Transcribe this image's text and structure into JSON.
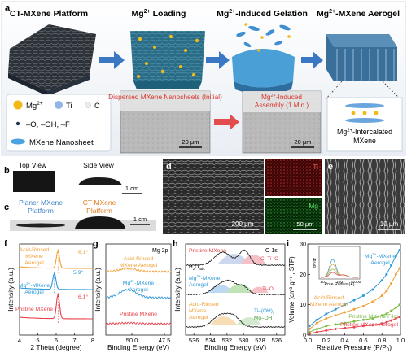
{
  "panel_letters": {
    "a": "a",
    "b": "b",
    "c": "c",
    "d": "d",
    "e": "e",
    "f": "f",
    "g": "g",
    "h": "h",
    "i": "i"
  },
  "panel_a": {
    "stage_titles": {
      "s1": "CT-MXene Platform",
      "s2_base": "Mg",
      "s2_sup": "2+",
      "s2_rest": " Loading",
      "s3_base": "Mg",
      "s3_sup": "2+",
      "s3_rest": "-Induced Gelation",
      "s4_base": "Mg",
      "s4_sup": "2+",
      "s4_rest": "-MXene Aerogel"
    },
    "legend": {
      "mg_base": "Mg",
      "mg_sup": "2+",
      "ti": "Ti",
      "c": "C",
      "groups": "–O, –OH, –F",
      "nanosheet": "MXene Nanosheet"
    },
    "micro1_title": "Dispersed MXene Nanosheets (Initial)",
    "micro2_title_a_base": "Mg",
    "micro2_title_a_sup": "2+",
    "micro2_title_a_rest": "-Induced",
    "micro2_title_b": "Assembly (1 Min.)",
    "scale_20um": "20 μm",
    "intercalated_a_base": "Mg",
    "intercalated_a_sup": "2+",
    "intercalated_a_rest": "-Intercalated",
    "intercalated_b": "MXene"
  },
  "panel_b": {
    "top": "Top View",
    "side": "Side View",
    "scale": "1 cm"
  },
  "panel_c": {
    "planer_a": "Planer MXene",
    "planer_b": "Platform",
    "ct_a": "CT-MXene",
    "ct_b": "Platform",
    "scale": "1 cm"
  },
  "panel_d": {
    "scale_main": "200 μm",
    "ti": "Ti",
    "mg": "Mg",
    "scale_small": "50 μm"
  },
  "panel_e": {
    "scale": "10 μm"
  },
  "colors": {
    "pristine": "#e8414b",
    "acid": "#f0a23a",
    "mg": "#2f9ad8",
    "film": "#7cba43",
    "arrow": "#3b78c4",
    "dark": "#1d3550"
  },
  "chart_data": [
    {
      "panel": "f",
      "type": "line",
      "xlabel": "2 Theta (degree)",
      "ylabel": "Intensity (a.u.)",
      "xlim": [
        4,
        8
      ],
      "xticks": [
        "4",
        "5",
        "6",
        "7",
        "8"
      ],
      "series": [
        {
          "name": "Acid-Rinsed MXene Aerogel",
          "label_a": "Acid-Rinsed",
          "label_b": "MXene",
          "label_c": "Aerogel",
          "peak": 6.1,
          "peak_label": "6.1°"
        },
        {
          "name": "Mg2+-MXene Aerogel",
          "label_a": "Mg",
          "label_sup": "2+",
          "label_a_rest": "-MXene",
          "label_b": "Aerogel",
          "peak": 5.9,
          "peak_label": "5.9°"
        },
        {
          "name": "Pristine MXene",
          "label_a": "Pristine MXene",
          "peak": 6.1,
          "peak_label": "6.1°"
        }
      ]
    },
    {
      "panel": "g",
      "type": "line",
      "title": "Mg 2p",
      "xlabel": "Binding Energy (eV)",
      "ylabel": "Intensity (a.u.)",
      "xlim": [
        52,
        47
      ],
      "xticks": [
        "50.0",
        "47.5"
      ],
      "series": [
        {
          "name": "Acid-Rinsed MXene Aerogel",
          "label_a": "Acid-Rinsed",
          "label_b": "MXene Aerogel"
        },
        {
          "name": "Mg2+-MXene Aerogel",
          "label_a": "Mg",
          "label_sup": "2+",
          "label_a_rest": "-MXene",
          "label_b": "Aerogel"
        },
        {
          "name": "Pristine MXene",
          "label_a": "Pristine MXene"
        }
      ]
    },
    {
      "panel": "h",
      "type": "line",
      "title": "O 1s",
      "xlabel": "Binding Energy (eV)",
      "ylabel": "Intensity (a.u.)",
      "xlim": [
        537,
        525
      ],
      "xticks": [
        "536",
        "534",
        "532",
        "530",
        "528",
        "526"
      ],
      "series": [
        {
          "name": "Pristine MXene",
          "label_a": "Pristine MXene"
        },
        {
          "name": "Mg2+-MXene Aerogel",
          "label_a": "Mg",
          "label_sup": "2+",
          "label_a_rest": "-MXene",
          "label_b": "Aerogel"
        },
        {
          "name": "Acid-Rinsed MXene Aerogel",
          "label_a": "Acid-Rinsed",
          "label_b": "MXene",
          "label_c": "Aerogel"
        }
      ],
      "components": {
        "h2o": "H",
        "h2o_sub1": "2",
        "h2o_rest": "O",
        "h2o_sub2": "ads",
        "ctio": "C–Ti–O",
        "tio": "Ti–O",
        "tioh": "Ti–(OH)",
        "tioh_sub": "x",
        "mgoh": "Mg–OH"
      }
    },
    {
      "panel": "i",
      "type": "line",
      "xlabel_a": "Relative Pressure (P/P",
      "xlabel_sub": "0",
      "xlabel_b": ")",
      "ylabel": "Volume (cm³ g⁻¹ , STP)",
      "xlim": [
        0,
        1
      ],
      "xticks": [
        "0.0",
        "0.2",
        "0.4",
        "0.6",
        "0.8",
        "1.0"
      ],
      "ylim": [
        0,
        30
      ],
      "yticks": [
        "0",
        "10",
        "20",
        "30"
      ],
      "x": [
        0.02,
        0.1,
        0.2,
        0.3,
        0.4,
        0.5,
        0.6,
        0.7,
        0.8,
        0.85,
        0.9,
        0.95,
        0.99
      ],
      "series": [
        {
          "name": "Mg2+-MXene Aerogel",
          "label_a": "Mg",
          "label_sup": "2+",
          "label_a_rest": "-MXene",
          "label_b": "Aerogel",
          "values": [
            3,
            5,
            7,
            8.5,
            10,
            11.5,
            13,
            15,
            18,
            20,
            23,
            26,
            28
          ]
        },
        {
          "name": "Acid-Rinsed MXene Aerogel",
          "label_a": "Acid-Rinsed",
          "label_b": "MXene Aerogel",
          "values": [
            2,
            4,
            5.5,
            6.5,
            7.5,
            8.5,
            9.5,
            11,
            13,
            14.5,
            17,
            20,
            22
          ]
        },
        {
          "name": "Pristine MXene Film",
          "values": [
            1,
            2,
            3,
            3.5,
            4,
            4.5,
            5,
            5.5,
            6.5,
            7,
            8,
            9,
            10
          ]
        },
        {
          "name": "Pristine MXene Aerogel",
          "values": [
            0.5,
            1,
            1.5,
            2,
            2.3,
            2.6,
            3,
            3.3,
            3.8,
            4.2,
            4.8,
            5.5,
            6
          ]
        }
      ],
      "inset": {
        "xlabel": "Pore Radius (Å)",
        "ylabel": "dV/dr",
        "xticks": [
          "10",
          "100",
          "1000"
        ]
      }
    }
  ]
}
